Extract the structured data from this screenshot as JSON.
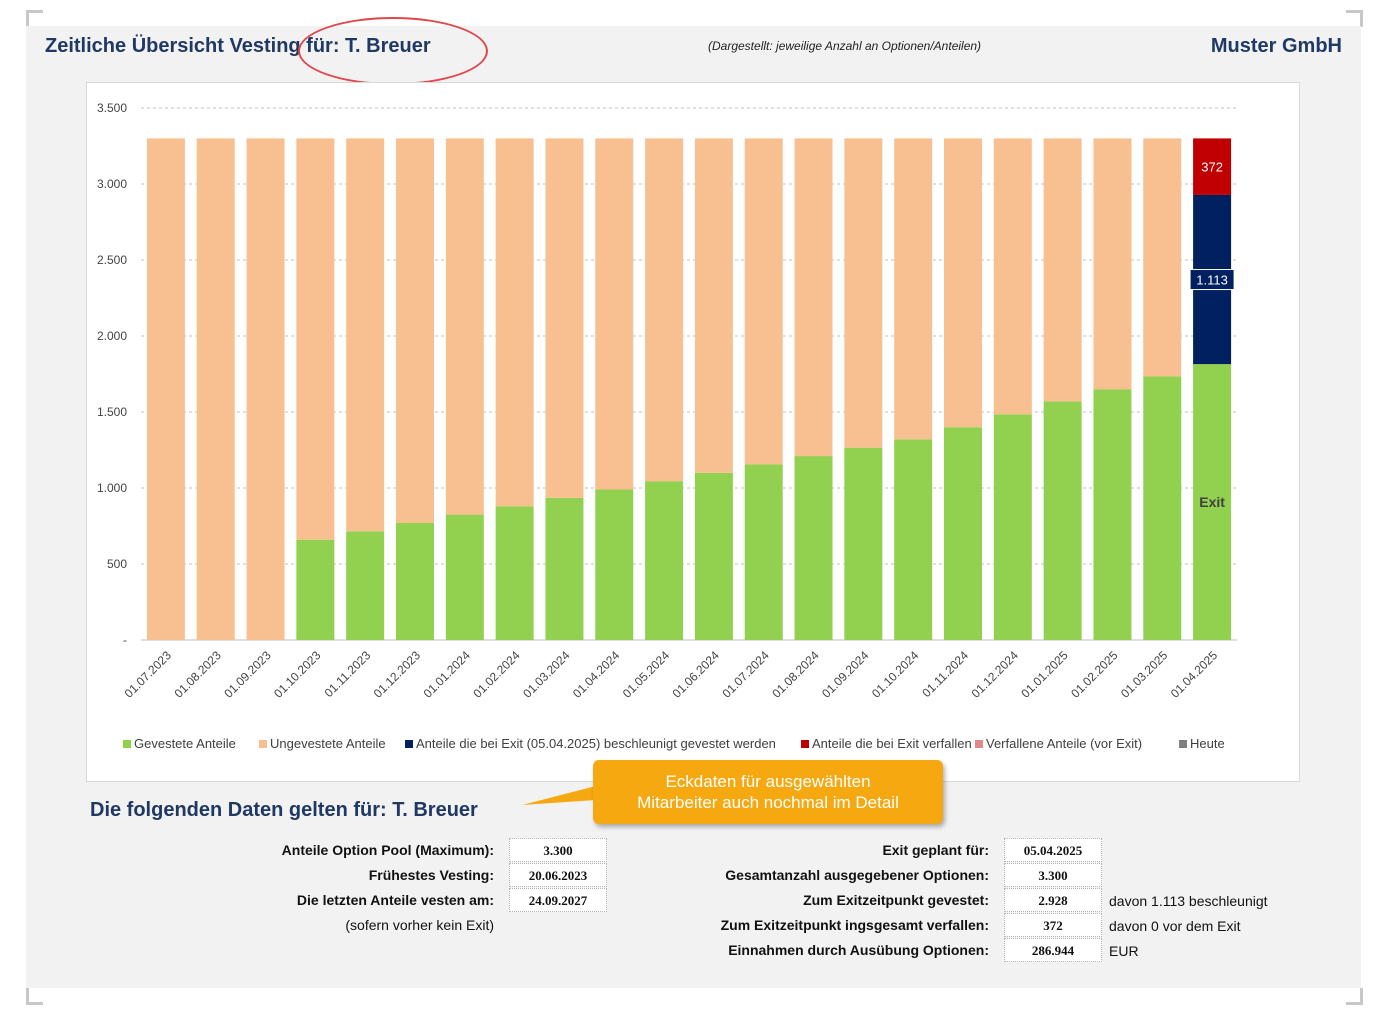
{
  "header": {
    "title": "Zeitliche Übersicht Vesting für: T. Breuer",
    "subtitle": "(Dargestellt: jeweilige Anzahl an Optionen/Anteilen)",
    "company": "Muster GmbH"
  },
  "chart_data": {
    "type": "bar",
    "stacked": true,
    "categories": [
      "01.07.2023",
      "01.08.2023",
      "01.09.2023",
      "01.10.2023",
      "01.11.2023",
      "01.12.2023",
      "01.01.2024",
      "01.02.2024",
      "01.03.2024",
      "01.04.2024",
      "01.05.2024",
      "01.06.2024",
      "01.07.2024",
      "01.08.2024",
      "01.09.2024",
      "01.10.2024",
      "01.11.2024",
      "01.12.2024",
      "01.01.2025",
      "01.02.2025",
      "01.03.2025",
      "01.04.2025"
    ],
    "series": [
      {
        "name": "Gevestete Anteile",
        "color": "#92d050",
        "values": [
          0,
          0,
          0,
          660,
          715,
          770,
          825,
          880,
          935,
          990,
          1045,
          1100,
          1155,
          1210,
          1265,
          1320,
          1400,
          1485,
          1570,
          1650,
          1735,
          1815
        ]
      },
      {
        "name": "Ungevestete Anteile",
        "color": "#f8c090",
        "values": [
          3300,
          3300,
          3300,
          2640,
          2585,
          2530,
          2475,
          2420,
          2365,
          2310,
          2255,
          2200,
          2145,
          2090,
          2035,
          1980,
          1900,
          1815,
          1730,
          1650,
          1565,
          0
        ]
      },
      {
        "name": "Anteile die bei Exit (05.04.2025) beschleunigt gevestet werden",
        "color": "#002060",
        "values": [
          0,
          0,
          0,
          0,
          0,
          0,
          0,
          0,
          0,
          0,
          0,
          0,
          0,
          0,
          0,
          0,
          0,
          0,
          0,
          0,
          0,
          1113
        ]
      },
      {
        "name": "Anteile die bei Exit verfallen",
        "color": "#c00000",
        "values": [
          0,
          0,
          0,
          0,
          0,
          0,
          0,
          0,
          0,
          0,
          0,
          0,
          0,
          0,
          0,
          0,
          0,
          0,
          0,
          0,
          0,
          372
        ]
      },
      {
        "name": "Verfallene Anteile (vor Exit)",
        "color": "#e6878a",
        "values": [
          0,
          0,
          0,
          0,
          0,
          0,
          0,
          0,
          0,
          0,
          0,
          0,
          0,
          0,
          0,
          0,
          0,
          0,
          0,
          0,
          0,
          0
        ]
      },
      {
        "name": "Heute",
        "color": "#7f7f7f",
        "values": [
          0,
          0,
          0,
          0,
          0,
          0,
          0,
          0,
          0,
          0,
          0,
          0,
          0,
          0,
          0,
          0,
          0,
          0,
          0,
          0,
          0,
          0
        ]
      }
    ],
    "yticks": [
      "-",
      "500",
      "1.000",
      "1.500",
      "2.000",
      "2.500",
      "3.000",
      "3.500"
    ],
    "ylim": [
      0,
      3500
    ],
    "grid": true,
    "legend_position": "bottom",
    "data_labels": [
      {
        "category_index": 21,
        "series_index": 3,
        "text": "372"
      },
      {
        "category_index": 21,
        "series_index": 2,
        "text": "1.113"
      }
    ],
    "annotation": {
      "category_index": 21,
      "text": "Exit"
    }
  },
  "callout": {
    "line1": "Eckdaten für ausgewählten",
    "line2": "Mitarbeiter auch nochmal im Detail"
  },
  "details": {
    "section_title": "Die folgenden Daten gelten für: T. Breuer",
    "left": [
      {
        "label": "Anteile Option Pool (Maximum):",
        "value": "3.300"
      },
      {
        "label": "Frühestes Vesting:",
        "value": "20.06.2023"
      },
      {
        "label": "Die letzten Anteile vesten am:",
        "value": "24.09.2027"
      }
    ],
    "left_note": "(sofern vorher kein Exit)",
    "right": [
      {
        "label": "Exit geplant für:",
        "value": "05.04.2025",
        "note": ""
      },
      {
        "label": "Gesamtanzahl ausgegebener Optionen:",
        "value": "3.300",
        "note": ""
      },
      {
        "label": "Zum Exitzeitpunkt gevestet:",
        "value": "2.928",
        "note": "davon 1.113 beschleunigt"
      },
      {
        "label": "Zum Exitzeitpunkt ingsgesamt verfallen:",
        "value": "372",
        "note": "davon 0 vor dem Exit"
      },
      {
        "label": "Einnahmen durch Ausübung Optionen:",
        "value": "286.944",
        "note": "EUR"
      }
    ]
  }
}
